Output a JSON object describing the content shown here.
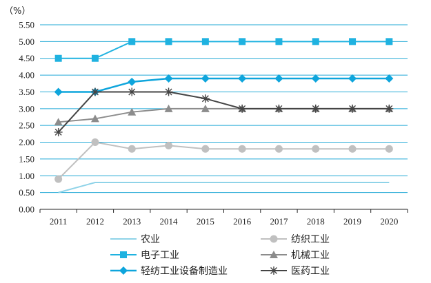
{
  "chart_data": {
    "type": "line",
    "unit_label": "（%）",
    "ylim": [
      0,
      5.5
    ],
    "y_ticks": [
      "0.00",
      "0.50",
      "1.00",
      "1.50",
      "2.00",
      "2.50",
      "3.00",
      "3.50",
      "4.00",
      "4.50",
      "5.00",
      "5.50"
    ],
    "x": [
      "2011",
      "2012",
      "2013",
      "2014",
      "2015",
      "2016",
      "2017",
      "2018",
      "2019",
      "2020"
    ],
    "grid": "horizontal",
    "legend_position": "bottom",
    "series": [
      {
        "name": "农业",
        "marker": "none",
        "color": "#8fd3e8",
        "width": 2,
        "values": [
          0.5,
          0.8,
          0.8,
          0.8,
          0.8,
          0.8,
          0.8,
          0.8,
          0.8,
          0.8
        ]
      },
      {
        "name": "纺织工业",
        "marker": "circle",
        "color": "#c0c0c0",
        "width": 2,
        "values": [
          0.9,
          2.0,
          1.8,
          1.9,
          1.8,
          1.8,
          1.8,
          1.8,
          1.8,
          1.8
        ]
      },
      {
        "name": "电子工业",
        "marker": "square",
        "color": "#1fb2e0",
        "width": 2,
        "values": [
          4.5,
          4.5,
          5.0,
          5.0,
          5.0,
          5.0,
          5.0,
          5.0,
          5.0,
          5.0
        ]
      },
      {
        "name": "机械工业",
        "marker": "triangle",
        "color": "#8c8c8c",
        "width": 2,
        "values": [
          2.6,
          2.7,
          2.9,
          3.0,
          3.0,
          3.0,
          3.0,
          3.0,
          3.0,
          3.0
        ]
      },
      {
        "name": "轻纺工业设备制造业",
        "marker": "diamond",
        "color": "#0ea5dc",
        "width": 2.5,
        "values": [
          3.5,
          3.5,
          3.8,
          3.9,
          3.9,
          3.9,
          3.9,
          3.9,
          3.9,
          3.9
        ]
      },
      {
        "name": "医药工业",
        "marker": "star",
        "color": "#444444",
        "width": 2,
        "values": [
          2.3,
          3.5,
          3.5,
          3.5,
          3.3,
          3.0,
          3.0,
          3.0,
          3.0,
          3.0
        ]
      }
    ]
  }
}
